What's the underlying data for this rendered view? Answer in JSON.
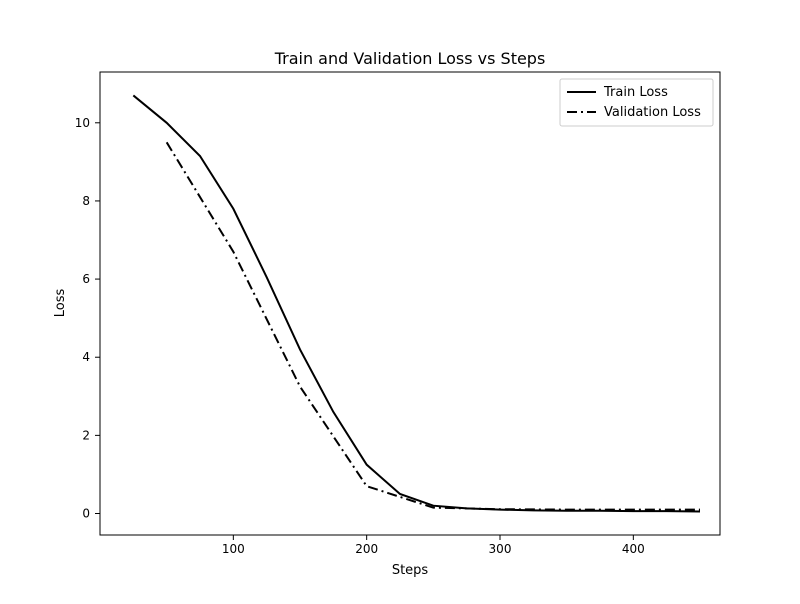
{
  "chart_data": {
    "type": "line",
    "title": "Train and Validation Loss vs Steps",
    "xlabel": "Steps",
    "ylabel": "Loss",
    "xlim": [
      0,
      465
    ],
    "ylim": [
      -0.55,
      11.3
    ],
    "xticks": [
      100,
      200,
      300,
      400
    ],
    "yticks": [
      0,
      2,
      4,
      6,
      8,
      10
    ],
    "grid": false,
    "legend_position": "top-right",
    "series": [
      {
        "name": "Train Loss",
        "line_style": "solid",
        "color": "#000000",
        "x": [
          25,
          50,
          75,
          100,
          125,
          150,
          175,
          200,
          225,
          250,
          275,
          300,
          325,
          350,
          375,
          400,
          425,
          450
        ],
        "y": [
          10.7,
          10.0,
          9.15,
          7.8,
          6.05,
          4.2,
          2.6,
          1.25,
          0.5,
          0.2,
          0.13,
          0.1,
          0.08,
          0.07,
          0.07,
          0.06,
          0.06,
          0.05
        ]
      },
      {
        "name": "Validation Loss",
        "line_style": "dash-dot",
        "color": "#000000",
        "x": [
          50,
          100,
          150,
          200,
          250,
          300,
          350,
          400,
          450
        ],
        "y": [
          9.5,
          6.7,
          3.25,
          0.7,
          0.15,
          0.11,
          0.1,
          0.1,
          0.1
        ]
      }
    ]
  }
}
